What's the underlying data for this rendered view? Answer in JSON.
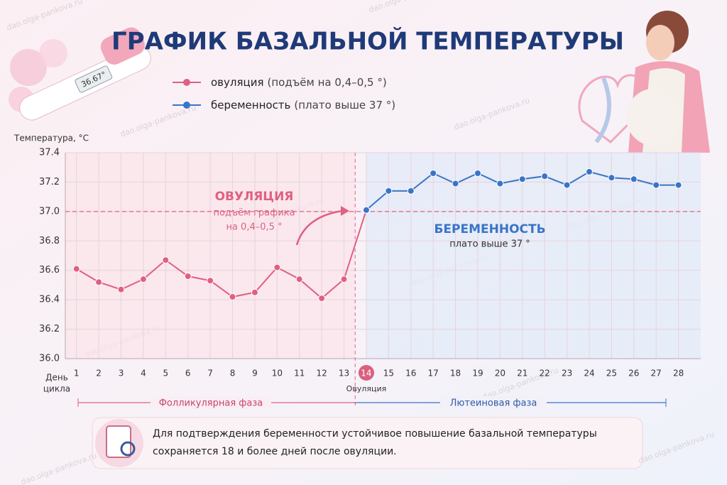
{
  "chart_data": {
    "type": "line",
    "title": "ГРАФИК БАЗАЛЬНОЙ ТЕМПЕРАТУРЫ",
    "y_label": "Температура, °C",
    "x_label": [
      "День",
      "цикла"
    ],
    "x": [
      1,
      2,
      3,
      4,
      5,
      6,
      7,
      8,
      9,
      10,
      11,
      12,
      13,
      14,
      15,
      16,
      17,
      18,
      19,
      20,
      21,
      22,
      23,
      24,
      25,
      26,
      27,
      28
    ],
    "series": [
      {
        "name": "овуляция",
        "note": "(подъём на 0,4–0,5 °)",
        "color": "#e06082",
        "values": [
          36.61,
          36.52,
          36.47,
          36.54,
          36.67,
          36.56,
          36.53,
          36.42,
          36.45,
          36.62,
          36.54,
          36.41,
          36.54,
          37.01,
          null,
          null,
          null,
          null,
          null,
          null,
          null,
          null,
          null,
          null,
          null,
          null,
          null,
          null
        ]
      },
      {
        "name": "беременность",
        "note": "(плато выше 37 °)",
        "color": "#3a74c8",
        "values": [
          null,
          null,
          null,
          null,
          null,
          null,
          null,
          null,
          null,
          null,
          null,
          null,
          null,
          37.01,
          37.14,
          37.14,
          37.26,
          37.19,
          37.26,
          37.19,
          37.22,
          37.24,
          37.18,
          37.27,
          37.23,
          37.22,
          37.18,
          37.18
        ]
      }
    ],
    "ylim": [
      36.0,
      37.4
    ],
    "yticks": [
      {
        "value": 36,
        "label": "36.0"
      },
      36.2,
      36.4,
      36.6,
      36.8,
      {
        "value": 37,
        "label": "37.0"
      },
      37.2,
      37.4
    ],
    "xlim": [
      0.5,
      29
    ],
    "grid": true,
    "threshold": 37,
    "ovulation_day": 14,
    "ovulation_label": "Овуляция",
    "annotations": {
      "ovulation": [
        "ОВУЛЯЦИЯ",
        "подъём графика",
        "на 0,4–0,5 °"
      ],
      "pregnancy": [
        "БЕРЕМЕННОСТЬ",
        "плато выше 37 °"
      ]
    },
    "phases": [
      "Фолликулярная фаза",
      "Лютеиновая фаза"
    ],
    "note": [
      "Для подтверждения беременности устойчивое повышение базальной температуры",
      "сохраняется 18 и более дней после овуляции."
    ],
    "thermometer_reading": "36.67°",
    "watermark": "dao.olga-pankova.ru"
  }
}
